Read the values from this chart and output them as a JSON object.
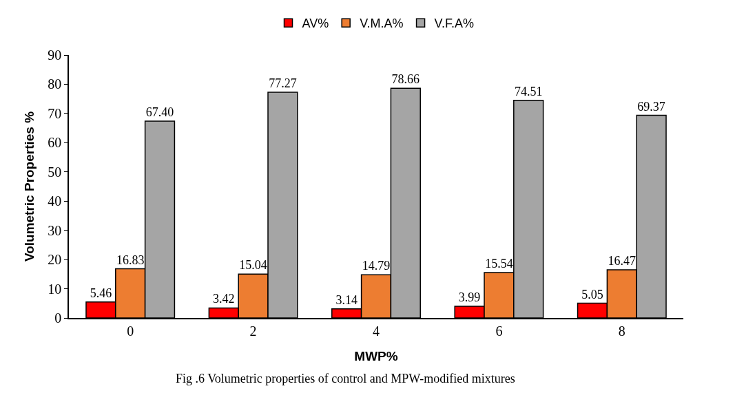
{
  "chart_data": {
    "type": "bar",
    "xlabel": "MWP%",
    "ylabel": "Volumetric Properties %",
    "categories": [
      "0",
      "2",
      "4",
      "6",
      "8"
    ],
    "series": [
      {
        "name": "AV%",
        "color": "#ff0000",
        "values": [
          5.46,
          3.42,
          3.14,
          3.99,
          5.05
        ],
        "value_labels": [
          "5.46",
          "3.42",
          "3.14",
          "3.99",
          "5.05"
        ]
      },
      {
        "name": "V.M.A%",
        "color": "#ed7d31",
        "values": [
          16.83,
          15.04,
          14.79,
          15.54,
          16.47
        ],
        "value_labels": [
          "16.83",
          "15.04",
          "14.79",
          "15.54",
          "16.47"
        ]
      },
      {
        "name": "V.F.A%",
        "color": "#a5a5a5",
        "values": [
          67.4,
          77.27,
          78.66,
          74.51,
          69.37
        ],
        "value_labels": [
          "67.40",
          "77.27",
          "78.66",
          "74.51",
          "69.37"
        ]
      }
    ],
    "ylim": [
      0,
      90
    ],
    "yticks": [
      0,
      10,
      20,
      30,
      40,
      50,
      60,
      70,
      80,
      90
    ],
    "grid": false,
    "legend": "top",
    "annotations": [
      "Fig .6 Volumetric properties of control and MPW-modified mixtures"
    ]
  }
}
